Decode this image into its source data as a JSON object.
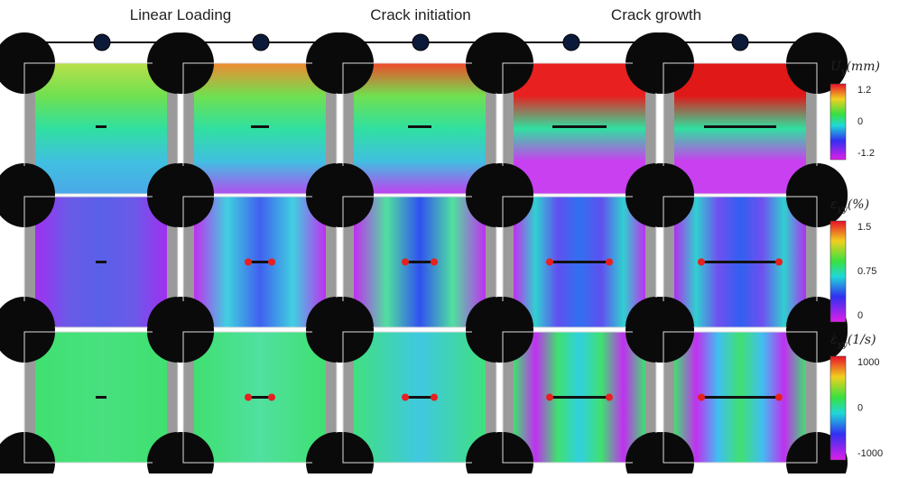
{
  "timeline": {
    "stages": [
      "Linear Loading",
      "Crack initiation",
      "Crack growth"
    ]
  },
  "colorbars": [
    {
      "symbol": "U",
      "subscript": "y",
      "unit": "(mm)",
      "ticks": [
        "1.2",
        "0",
        "-1.2"
      ]
    },
    {
      "symbol": "ε",
      "subscript": "yy",
      "unit": "(%)",
      "ticks": [
        "1.5",
        "0.75",
        "0"
      ]
    },
    {
      "symbol": "ε̇",
      "subscript": "yy",
      "unit": "(1/s)",
      "ticks": [
        "1000",
        "0",
        "-1000"
      ]
    }
  ]
}
